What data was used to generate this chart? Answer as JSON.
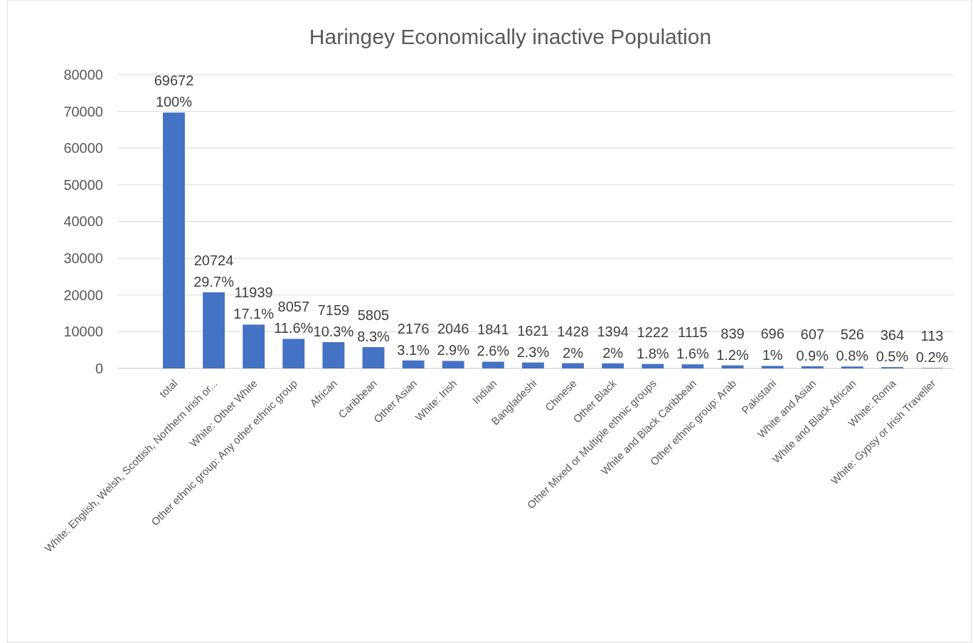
{
  "chart_data": {
    "type": "bar",
    "title": "Haringey Economically inactive Population",
    "categories": [
      "total",
      "White: English, Welsh, Scottish, Northern Irish or...",
      "White: Other White",
      "Other ethnic group: Any other ethnic group",
      "African",
      "Caribbean",
      "Other Asian",
      "White: Irish",
      "Indian",
      "Bangladeshi",
      "Chinese",
      "Other Black",
      "Other Mixed or Multiple ethnic groups",
      "White and Black Caribbean",
      "Other ethnic group: Arab",
      "Pakistani",
      "White and Asian",
      "White and Black African",
      "White: Roma",
      "White: Gypsy or Irish Traveller"
    ],
    "values": [
      69672,
      20724,
      11939,
      8057,
      7159,
      5805,
      2176,
      2046,
      1841,
      1621,
      1428,
      1394,
      1222,
      1115,
      839,
      696,
      607,
      526,
      364,
      113
    ],
    "data_labels": true,
    "annotations": [
      {
        "text": "100%",
        "x": "total",
        "y": 69672
      },
      {
        "text": "29.7%",
        "x": "White: English, Welsh, Scottish, Northern Irish or...",
        "y": 20724
      },
      {
        "text": "17.1%",
        "x": "White: Other White",
        "y": 11939
      },
      {
        "text": "11.6%",
        "x": "Other ethnic group: Any other ethnic group",
        "y": 8057
      },
      {
        "text": "10.3%",
        "x": "African",
        "y": 7159
      },
      {
        "text": "8.3%",
        "x": "Caribbean",
        "y": 5805
      },
      {
        "text": "3.1%",
        "x": "Other Asian",
        "y": 2176
      },
      {
        "text": "2.9%",
        "x": "White: Irish",
        "y": 2046
      },
      {
        "text": "2.6%",
        "x": "Indian",
        "y": 1841
      },
      {
        "text": "2.3%",
        "x": "Bangladeshi",
        "y": 1621
      },
      {
        "text": "2%",
        "x": "Chinese",
        "y": 1428
      },
      {
        "text": "2%",
        "x": "Other Black",
        "y": 1394
      },
      {
        "text": "1.8%",
        "x": "Other Mixed or Multiple ethnic groups",
        "y": 1222
      },
      {
        "text": "1.6%",
        "x": "White and Black Caribbean",
        "y": 1115
      },
      {
        "text": "1.2%",
        "x": "Other ethnic group: Arab",
        "y": 839
      },
      {
        "text": "1%",
        "x": "Pakistani",
        "y": 696
      },
      {
        "text": "0.9%",
        "x": "White and Asian",
        "y": 607
      },
      {
        "text": "0.8%",
        "x": "White and Black African",
        "y": 526
      },
      {
        "text": "0.5%",
        "x": "White: Roma",
        "y": 364
      },
      {
        "text": "0.2%",
        "x": "White: Gypsy or Irish Traveller",
        "y": 113
      }
    ],
    "color": "#4472c4",
    "ylim": [
      0,
      80000
    ],
    "yticks": [
      0,
      10000,
      20000,
      30000,
      40000,
      50000,
      60000,
      70000,
      80000
    ],
    "grid": "y"
  }
}
